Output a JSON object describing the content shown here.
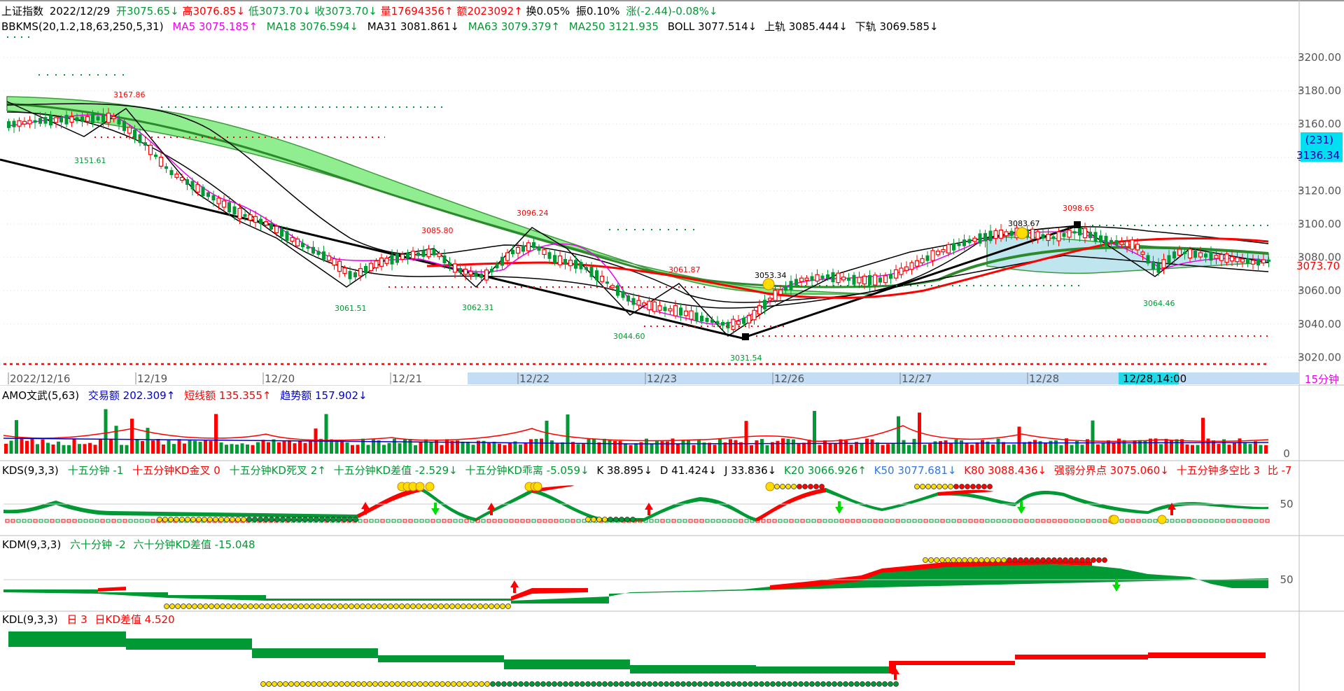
{
  "header": {
    "index_name": "上证指数",
    "date": "2022/12/29",
    "open": "开3075.65↓",
    "high": "高3076.85↓",
    "low": "低3073.70↓",
    "close": "收3073.70↓",
    "volume": "量17694356↑",
    "amount": "额2023092↑",
    "turnover": "换0.05%",
    "amplitude": "振0.10%",
    "change": "涨(-2.44)-0.08%↓"
  },
  "indicator_line": {
    "name": "BBKMS(20,1.2,18,63,250,5,31)",
    "ma5": "MA5 3075.185↑",
    "ma18": "MA18 3076.594↓",
    "ma31": "MA31 3081.861↓",
    "ma63": "MA63 3079.379↑",
    "ma250": "MA250 3121.935",
    "boll": "BOLL 3077.514↓",
    "upper": "上轨 3085.444↓",
    "lower": "下轨 3069.585↓"
  },
  "price_axis": [
    "3200.00",
    "3180.00",
    "3160.00",
    "3140.00",
    "3120.00",
    "3100.00",
    "3080.00",
    "3060.00",
    "3040.00",
    "3020.00"
  ],
  "price_box": {
    "count": "(231)",
    "price": "3136.34"
  },
  "last_price": "3073.70",
  "annotations": {
    "a1": "3167.86",
    "a2": "3151.61",
    "a3": "3085.80",
    "a4": "3061.51",
    "a5": "3096.24",
    "a6": "3062.31",
    "a7": "3061.87",
    "a8": "3044.60",
    "a9": "3053.34",
    "a10": "3031.54",
    "a11": "3083.67",
    "a12": "3098.65",
    "a13": "3064.46"
  },
  "time_axis": [
    "2022/12/16",
    "12/19",
    "12/20",
    "12/21",
    "12/22",
    "12/23",
    "12/26",
    "12/27",
    "12/28"
  ],
  "cursor_time": "12/28,14:00",
  "period": "15分钟",
  "amo": {
    "name": "AMO文武(5,63)",
    "trade": "交易额 202.309↑",
    "short": "短线额 135.355↑",
    "trend": "趋势额 157.902↓",
    "axis_zero": "0"
  },
  "kds": {
    "name": "KDS(9,3,3)",
    "v1": "十五分钟 -1",
    "v2": "十五分钟KD金叉 0",
    "v3": "十五分钟KD死叉 2↑",
    "v4": "十五分钟KD差值 -2.529↓",
    "v5": "十五分钟KD乖离 -5.059↓",
    "k": "K 38.895↓",
    "d": "D 41.424↓",
    "j": "J 33.836↓",
    "k20": "K20 3066.926↑",
    "k50": "K50 3077.681↓",
    "k80": "K80 3088.436↓",
    "strong": "强弱分界点 3075.060↓",
    "ratio": "十五分钟多空比 3",
    "bi": "比 -7",
    "axis": "50"
  },
  "kdm": {
    "name": "KDM(9,3,3)",
    "v1": "六十分钟 -2",
    "v2": "六十分钟KD差值 -15.048",
    "axis": "50"
  },
  "kdl": {
    "name": "KDL(9,3,3)",
    "v1": "日 3",
    "v2": "日KD差值 4.520"
  },
  "colors": {
    "up": "#ff0000",
    "down": "#009933",
    "band": "#90ee90",
    "band2": "#bfe6ee",
    "blue": "#0000cc",
    "cursor": "#00ccdd"
  }
}
